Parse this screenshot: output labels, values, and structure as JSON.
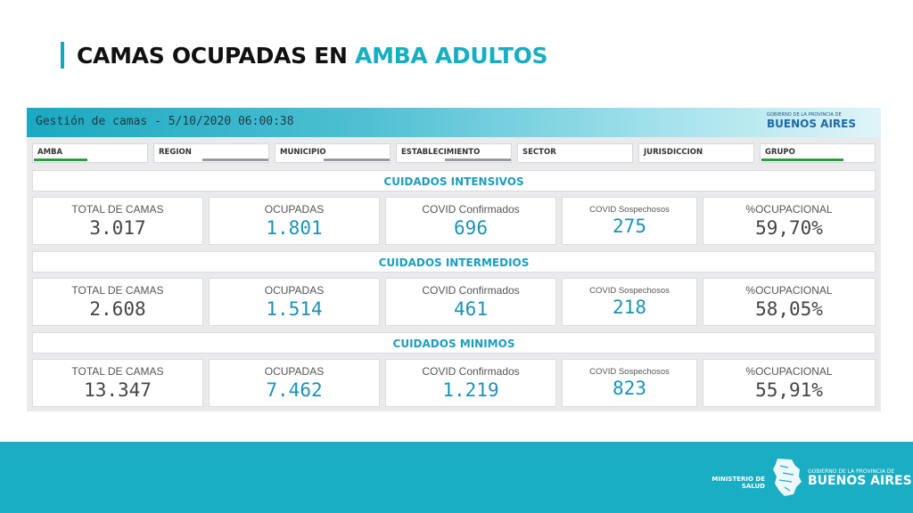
{
  "title": {
    "part1": "CAMAS OCUPADAS EN",
    "part2": "AMBA ADULTOS"
  },
  "panel": {
    "header_text": "Gestión de camas - 5/10/2020 06:00:38",
    "logo_small": "GOBIERNO DE LA PROVINCIA DE",
    "logo_big": "BUENOS AIRES"
  },
  "filters": [
    {
      "label": "AMBA",
      "active": true
    },
    {
      "label": "REGION",
      "active": false
    },
    {
      "label": "MUNICIPIO",
      "active": false
    },
    {
      "label": "ESTABLECIMIENTO",
      "active": false
    },
    {
      "label": "SECTOR",
      "active": false
    },
    {
      "label": "JURISDICCION",
      "active": false
    },
    {
      "label": "GRUPO",
      "active": true
    }
  ],
  "captions": {
    "total": "TOTAL DE CAMAS",
    "ocupadas": "OCUPADAS",
    "confirmados": "COVID Confirmados",
    "sospechosos": "COVID Sospechosos",
    "ocupacional": "%OCUPACIONAL"
  },
  "sections": [
    {
      "title": "CUIDADOS INTENSIVOS",
      "total": "3.017",
      "ocupadas": "1.801",
      "confirmados": "696",
      "sospechosos": "275",
      "ocupacional": "59,70%"
    },
    {
      "title": "CUIDADOS INTERMEDIOS",
      "total": "2.608",
      "ocupadas": "1.514",
      "confirmados": "461",
      "sospechosos": "218",
      "ocupacional": "58,05%"
    },
    {
      "title": "CUIDADOS MINIMOS",
      "total": "13.347",
      "ocupadas": "7.462",
      "confirmados": "1.219",
      "sospechosos": "823",
      "ocupacional": "55,91%"
    }
  ],
  "footer": {
    "ministry": "MINISTERIO DE SALUD",
    "gov_small": "GOBIERNO DE LA PROVINCIA DE",
    "gov_big": "BUENOS AIRES"
  },
  "colors": {
    "accent": "#17aec2",
    "footer": "#19aec4",
    "active_filter": "#2e9a3e",
    "inactive_filter": "#9a9a9a"
  }
}
